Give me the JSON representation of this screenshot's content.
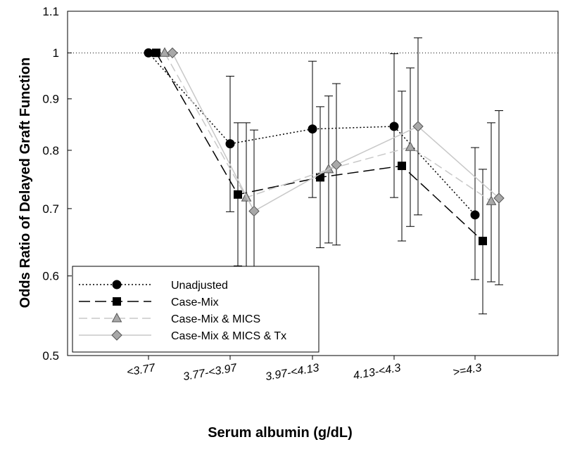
{
  "chart_data": {
    "type": "line",
    "title": "",
    "xlabel": "Serum albumin (g/dL)",
    "ylabel": "Odds Ratio of Delayed Graft Function",
    "scale": "log",
    "ylim": [
      0.5,
      1.1
    ],
    "yticks": [
      {
        "value": 0.5,
        "label": "0.5"
      },
      {
        "value": 0.6,
        "label": "0.6"
      },
      {
        "value": 0.7,
        "label": "0.7"
      },
      {
        "value": 0.8,
        "label": "0.8"
      },
      {
        "value": 0.9,
        "label": "0.9"
      },
      {
        "value": 1.0,
        "label": "1"
      },
      {
        "value": 1.1,
        "label": "1.1"
      }
    ],
    "reference_line": 1.0,
    "categories": [
      "<3.77",
      "3.77-<3.97",
      "3.97-<4.13",
      "4.13-<4.3",
      ">=4.3"
    ],
    "series": [
      {
        "name": "Unadjusted",
        "marker": "circle",
        "line": "dotted",
        "color": "#000000",
        "fill": "#000000",
        "values": [
          1.0,
          0.812,
          0.84,
          0.845,
          0.69
        ],
        "ci_low": [
          null,
          0.695,
          0.718,
          0.718,
          0.595
        ],
        "ci_high": [
          null,
          0.948,
          0.981,
          0.998,
          0.805
        ]
      },
      {
        "name": "Case-Mix",
        "marker": "square",
        "line": "longdash",
        "color": "#000000",
        "fill": "#000000",
        "values": [
          1.0,
          0.723,
          0.752,
          0.772,
          0.65
        ],
        "ci_low": [
          null,
          0.614,
          0.64,
          0.65,
          0.55
        ],
        "ci_high": [
          null,
          0.852,
          0.884,
          0.916,
          0.766
        ]
      },
      {
        "name": "Case-Mix & MICS",
        "marker": "triangle",
        "line": "dash",
        "color": "#c8c8c8",
        "fill": "#a8a8a8",
        "values": [
          1.0,
          0.718,
          0.766,
          0.806,
          0.712
        ],
        "ci_low": [
          null,
          0.607,
          0.647,
          0.672,
          0.592
        ],
        "ci_high": [
          null,
          0.852,
          0.906,
          0.966,
          0.852
        ]
      },
      {
        "name": "Case-Mix & MICS & Tx",
        "marker": "diamond",
        "line": "solid",
        "color": "#c8c8c8",
        "fill": "#a8a8a8",
        "values": [
          1.0,
          0.696,
          0.774,
          0.845,
          0.717
        ],
        "ci_low": [
          null,
          0.578,
          0.644,
          0.69,
          0.588
        ],
        "ci_high": [
          null,
          0.838,
          0.932,
          1.035,
          0.876
        ]
      }
    ],
    "legend": {
      "placement": "bottom-left",
      "entries": [
        "Unadjusted",
        "Case-Mix",
        "Case-Mix & MICS",
        "Case-Mix & MICS & Tx"
      ]
    },
    "grid": false
  }
}
